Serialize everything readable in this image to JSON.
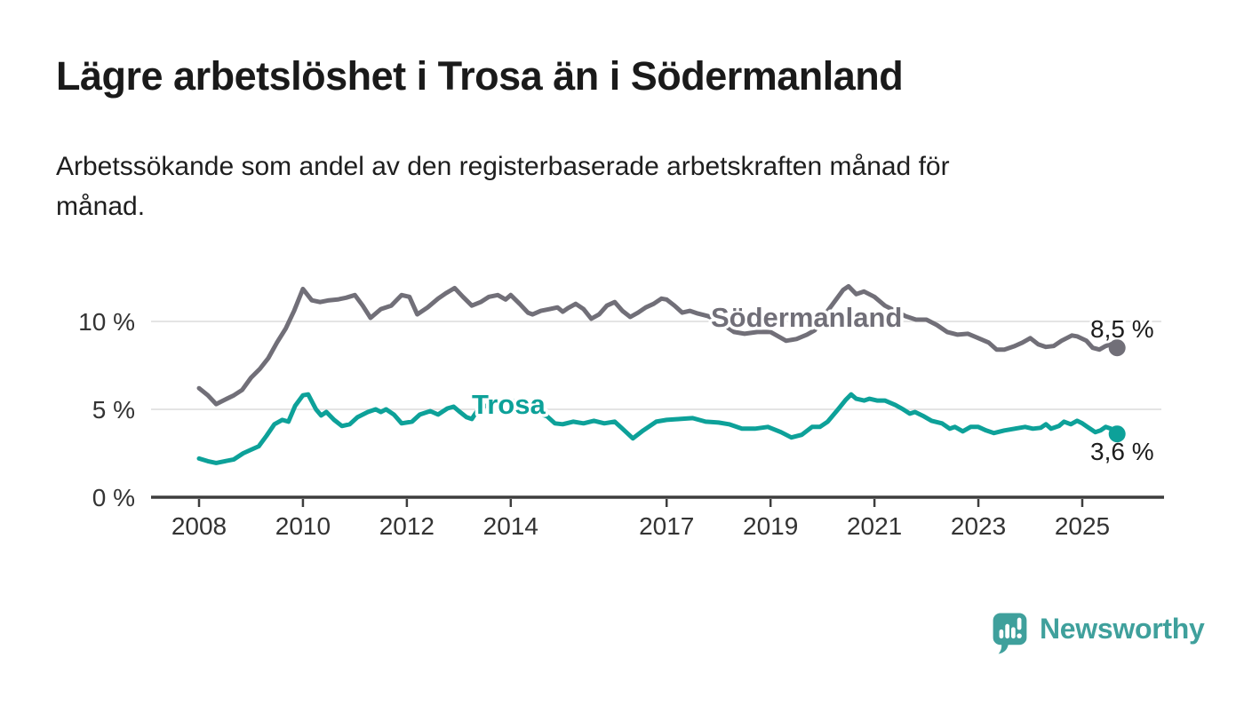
{
  "header": {
    "title": "Lägre arbetslöshet i Trosa än i Södermanland",
    "subtitle_line1": "Arbetssökande som andel av den registerbaserade arbetskraften månad för",
    "subtitle_line2": "månad."
  },
  "footer": {
    "logo_text": "Newsworthy",
    "logo_color": "#3fa09c"
  },
  "chart_data": {
    "type": "line",
    "title": "Lägre arbetslöshet i Trosa än i Södermanland",
    "unit": "%",
    "ylim": [
      0,
      12.5
    ],
    "grid": true,
    "legend_position": "inline-labels",
    "y_ticks": [
      {
        "value": 0,
        "label": "0 %"
      },
      {
        "value": 5,
        "label": "5 %"
      },
      {
        "value": 10,
        "label": "10 %"
      }
    ],
    "x_ticks": [
      {
        "value": 2008,
        "label": "2008"
      },
      {
        "value": 2010,
        "label": "2010"
      },
      {
        "value": 2012,
        "label": "2012"
      },
      {
        "value": 2014,
        "label": "2014"
      },
      {
        "value": 2017,
        "label": "2017"
      },
      {
        "value": 2019,
        "label": "2019"
      },
      {
        "value": 2021,
        "label": "2021"
      },
      {
        "value": 2023,
        "label": "2023"
      },
      {
        "value": 2025,
        "label": "2025"
      }
    ],
    "series": [
      {
        "name": "Södermanland",
        "color": "#716f78",
        "end_label": "8,5 %",
        "end_value": 8.5,
        "points": [
          [
            2008.0,
            6.2
          ],
          [
            2008.17,
            5.8
          ],
          [
            2008.33,
            5.3
          ],
          [
            2008.5,
            5.55
          ],
          [
            2008.67,
            5.8
          ],
          [
            2008.83,
            6.1
          ],
          [
            2009.0,
            6.8
          ],
          [
            2009.17,
            7.3
          ],
          [
            2009.33,
            7.9
          ],
          [
            2009.5,
            8.8
          ],
          [
            2009.67,
            9.6
          ],
          [
            2009.83,
            10.6
          ],
          [
            2010.0,
            11.85
          ],
          [
            2010.17,
            11.2
          ],
          [
            2010.33,
            11.1
          ],
          [
            2010.5,
            11.2
          ],
          [
            2010.67,
            11.25
          ],
          [
            2010.83,
            11.35
          ],
          [
            2011.0,
            11.5
          ],
          [
            2011.15,
            10.9
          ],
          [
            2011.3,
            10.2
          ],
          [
            2011.5,
            10.7
          ],
          [
            2011.7,
            10.9
          ],
          [
            2011.9,
            11.5
          ],
          [
            2012.05,
            11.4
          ],
          [
            2012.2,
            10.4
          ],
          [
            2012.4,
            10.8
          ],
          [
            2012.6,
            11.3
          ],
          [
            2012.75,
            11.6
          ],
          [
            2012.92,
            11.9
          ],
          [
            2013.08,
            11.4
          ],
          [
            2013.25,
            10.9
          ],
          [
            2013.42,
            11.1
          ],
          [
            2013.58,
            11.4
          ],
          [
            2013.75,
            11.5
          ],
          [
            2013.9,
            11.25
          ],
          [
            2014.0,
            11.5
          ],
          [
            2014.17,
            11.0
          ],
          [
            2014.33,
            10.5
          ],
          [
            2014.42,
            10.4
          ],
          [
            2014.58,
            10.6
          ],
          [
            2014.75,
            10.7
          ],
          [
            2014.9,
            10.8
          ],
          [
            2015.0,
            10.55
          ],
          [
            2015.1,
            10.75
          ],
          [
            2015.25,
            11.0
          ],
          [
            2015.4,
            10.7
          ],
          [
            2015.55,
            10.15
          ],
          [
            2015.7,
            10.4
          ],
          [
            2015.85,
            10.9
          ],
          [
            2016.0,
            11.1
          ],
          [
            2016.15,
            10.6
          ],
          [
            2016.3,
            10.25
          ],
          [
            2016.45,
            10.5
          ],
          [
            2016.6,
            10.8
          ],
          [
            2016.75,
            11.0
          ],
          [
            2016.9,
            11.3
          ],
          [
            2017.0,
            11.25
          ],
          [
            2017.15,
            10.9
          ],
          [
            2017.3,
            10.5
          ],
          [
            2017.45,
            10.6
          ],
          [
            2017.6,
            10.45
          ],
          [
            2017.8,
            10.3
          ],
          [
            2018.0,
            10.0
          ],
          [
            2018.3,
            9.4
          ],
          [
            2018.5,
            9.3
          ],
          [
            2018.75,
            9.4
          ],
          [
            2019.0,
            9.4
          ],
          [
            2019.3,
            8.9
          ],
          [
            2019.5,
            9.0
          ],
          [
            2019.7,
            9.25
          ],
          [
            2019.85,
            9.5
          ],
          [
            2020.0,
            10.2
          ],
          [
            2020.2,
            11.0
          ],
          [
            2020.4,
            11.8
          ],
          [
            2020.5,
            12.0
          ],
          [
            2020.65,
            11.55
          ],
          [
            2020.8,
            11.7
          ],
          [
            2021.0,
            11.4
          ],
          [
            2021.2,
            10.9
          ],
          [
            2021.4,
            10.6
          ],
          [
            2021.6,
            10.3
          ],
          [
            2021.8,
            10.1
          ],
          [
            2022.0,
            10.1
          ],
          [
            2022.2,
            9.8
          ],
          [
            2022.4,
            9.4
          ],
          [
            2022.6,
            9.25
          ],
          [
            2022.8,
            9.3
          ],
          [
            2023.0,
            9.05
          ],
          [
            2023.2,
            8.8
          ],
          [
            2023.35,
            8.4
          ],
          [
            2023.5,
            8.4
          ],
          [
            2023.7,
            8.6
          ],
          [
            2023.85,
            8.8
          ],
          [
            2024.0,
            9.05
          ],
          [
            2024.15,
            8.7
          ],
          [
            2024.3,
            8.55
          ],
          [
            2024.45,
            8.6
          ],
          [
            2024.6,
            8.9
          ],
          [
            2024.8,
            9.2
          ],
          [
            2024.9,
            9.15
          ],
          [
            2025.08,
            8.9
          ],
          [
            2025.2,
            8.5
          ],
          [
            2025.33,
            8.4
          ],
          [
            2025.45,
            8.6
          ],
          [
            2025.55,
            8.7
          ],
          [
            2025.67,
            8.5
          ]
        ]
      },
      {
        "name": "Trosa",
        "color": "#0da199",
        "end_label": "3,6 %",
        "end_value": 3.6,
        "points": [
          [
            2008.0,
            2.2
          ],
          [
            2008.17,
            2.05
          ],
          [
            2008.33,
            1.95
          ],
          [
            2008.5,
            2.05
          ],
          [
            2008.67,
            2.15
          ],
          [
            2008.85,
            2.5
          ],
          [
            2009.0,
            2.7
          ],
          [
            2009.15,
            2.9
          ],
          [
            2009.3,
            3.5
          ],
          [
            2009.45,
            4.15
          ],
          [
            2009.6,
            4.4
          ],
          [
            2009.72,
            4.3
          ],
          [
            2009.85,
            5.2
          ],
          [
            2010.0,
            5.8
          ],
          [
            2010.1,
            5.85
          ],
          [
            2010.25,
            5.0
          ],
          [
            2010.35,
            4.65
          ],
          [
            2010.45,
            4.85
          ],
          [
            2010.6,
            4.4
          ],
          [
            2010.75,
            4.05
          ],
          [
            2010.9,
            4.15
          ],
          [
            2011.05,
            4.55
          ],
          [
            2011.25,
            4.85
          ],
          [
            2011.4,
            5.0
          ],
          [
            2011.5,
            4.85
          ],
          [
            2011.6,
            5.0
          ],
          [
            2011.75,
            4.7
          ],
          [
            2011.9,
            4.2
          ],
          [
            2012.1,
            4.3
          ],
          [
            2012.25,
            4.7
          ],
          [
            2012.45,
            4.9
          ],
          [
            2012.6,
            4.7
          ],
          [
            2012.78,
            5.05
          ],
          [
            2012.9,
            5.15
          ],
          [
            2013.0,
            4.9
          ],
          [
            2013.15,
            4.55
          ],
          [
            2013.25,
            4.45
          ],
          [
            2013.35,
            4.9
          ],
          [
            2013.5,
            5.2
          ],
          [
            2013.65,
            5.1
          ],
          [
            2013.8,
            5.35
          ],
          [
            2013.95,
            5.6
          ],
          [
            2014.1,
            5.4
          ],
          [
            2014.3,
            5.0
          ],
          [
            2014.5,
            4.8
          ],
          [
            2014.7,
            4.6
          ],
          [
            2014.85,
            4.2
          ],
          [
            2015.0,
            4.15
          ],
          [
            2015.2,
            4.3
          ],
          [
            2015.4,
            4.2
          ],
          [
            2015.6,
            4.35
          ],
          [
            2015.8,
            4.2
          ],
          [
            2016.0,
            4.3
          ],
          [
            2016.15,
            3.9
          ],
          [
            2016.35,
            3.35
          ],
          [
            2016.55,
            3.8
          ],
          [
            2016.8,
            4.3
          ],
          [
            2017.0,
            4.4
          ],
          [
            2017.25,
            4.45
          ],
          [
            2017.5,
            4.5
          ],
          [
            2017.75,
            4.3
          ],
          [
            2018.0,
            4.25
          ],
          [
            2018.2,
            4.15
          ],
          [
            2018.45,
            3.9
          ],
          [
            2018.7,
            3.9
          ],
          [
            2018.95,
            4.0
          ],
          [
            2019.2,
            3.7
          ],
          [
            2019.4,
            3.4
          ],
          [
            2019.6,
            3.55
          ],
          [
            2019.8,
            4.0
          ],
          [
            2019.95,
            4.0
          ],
          [
            2020.1,
            4.3
          ],
          [
            2020.3,
            5.0
          ],
          [
            2020.45,
            5.55
          ],
          [
            2020.55,
            5.85
          ],
          [
            2020.65,
            5.6
          ],
          [
            2020.8,
            5.5
          ],
          [
            2020.9,
            5.6
          ],
          [
            2021.05,
            5.5
          ],
          [
            2021.2,
            5.5
          ],
          [
            2021.4,
            5.25
          ],
          [
            2021.55,
            5.0
          ],
          [
            2021.68,
            4.75
          ],
          [
            2021.78,
            4.85
          ],
          [
            2021.95,
            4.6
          ],
          [
            2022.1,
            4.35
          ],
          [
            2022.3,
            4.2
          ],
          [
            2022.45,
            3.9
          ],
          [
            2022.55,
            4.0
          ],
          [
            2022.7,
            3.75
          ],
          [
            2022.85,
            4.0
          ],
          [
            2023.0,
            4.0
          ],
          [
            2023.15,
            3.8
          ],
          [
            2023.3,
            3.65
          ],
          [
            2023.5,
            3.8
          ],
          [
            2023.7,
            3.9
          ],
          [
            2023.9,
            4.0
          ],
          [
            2024.05,
            3.9
          ],
          [
            2024.2,
            3.95
          ],
          [
            2024.3,
            4.15
          ],
          [
            2024.4,
            3.9
          ],
          [
            2024.55,
            4.05
          ],
          [
            2024.65,
            4.3
          ],
          [
            2024.78,
            4.15
          ],
          [
            2024.9,
            4.35
          ],
          [
            2025.0,
            4.2
          ],
          [
            2025.1,
            4.0
          ],
          [
            2025.25,
            3.7
          ],
          [
            2025.35,
            3.8
          ],
          [
            2025.45,
            4.0
          ],
          [
            2025.55,
            3.9
          ],
          [
            2025.67,
            3.6
          ]
        ]
      }
    ]
  }
}
